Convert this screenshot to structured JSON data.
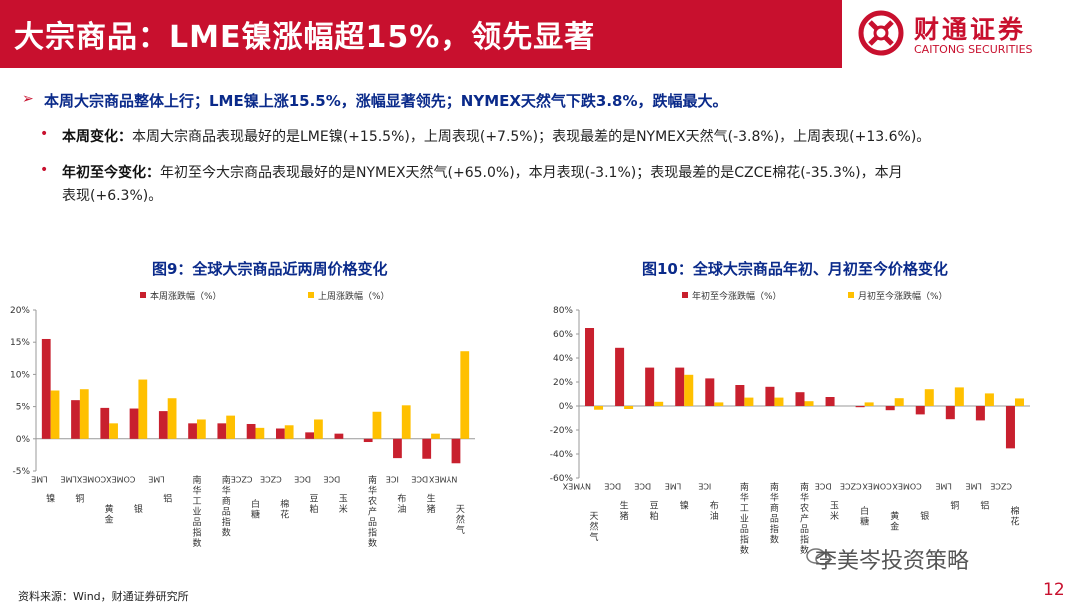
{
  "header": {
    "title": "大宗商品：LME镍涨幅超15%，领先显著"
  },
  "logo": {
    "cn": "财通证券",
    "en": "CAITONG SECURITIES"
  },
  "summary": {
    "arrow": "➢",
    "text": "本周大宗商品整体上行；LME镍上涨15.5%，涨幅显著领先；NYMEX天然气下跌3.8%，跌幅最大。"
  },
  "bullets": [
    {
      "dot": "•",
      "label": "本周变化：",
      "text": "本周大宗商品表现最好的是LME镍(+15.5%)，上周表现(+7.5%)；表现最差的是NYMEX天然气(-3.8%)，上周表现(+13.6%)。"
    },
    {
      "dot": "•",
      "label": "年初至今变化：",
      "text": "年初至今大宗商品表现最好的是NYMEX天然气(+65.0%)，本月表现(-3.1%)；表现最差的是CZCE棉花(-35.3%)，本月",
      "text2": "表现(+6.3%)。"
    }
  ],
  "chart_data": [
    {
      "type": "bar",
      "title": "图9：全球大宗商品近两周价格变化",
      "categories": [
        "LME镍",
        "LME铜",
        "COMEX黄金",
        "COMEX银",
        "LME铝",
        "南华工业品指数",
        "南华商品指数",
        "CZCE白糖",
        "CZCE棉花",
        "DCE豆粕",
        "DCE玉米",
        "南华农产品指数",
        "ICE布油",
        "DCE生猪",
        "NYMEX天然气"
      ],
      "series": [
        {
          "name": "本周涨跌幅（%）",
          "color": "#c8202e",
          "values": [
            15.5,
            6.0,
            4.8,
            4.7,
            4.3,
            2.4,
            2.4,
            2.3,
            1.6,
            1.0,
            0.8,
            -0.5,
            -3.0,
            -3.1,
            -3.8
          ]
        },
        {
          "name": "上周涨跌幅（%）",
          "color": "#ffc000",
          "values": [
            7.5,
            7.7,
            2.4,
            9.2,
            6.3,
            3.0,
            3.6,
            1.7,
            2.1,
            3.0,
            0.0,
            4.2,
            5.2,
            0.8,
            13.6
          ]
        }
      ],
      "ylim": [
        -5,
        20
      ],
      "yticks": [
        "-5%",
        "0%",
        "5%",
        "10%",
        "15%",
        "20%"
      ],
      "legend": "top"
    },
    {
      "type": "bar",
      "title": "图10：全球大宗商品年初、月初至今价格变化",
      "categories": [
        "NYMEX天然气",
        "DCE生猪",
        "DCE豆粕",
        "LME镍",
        "ICE布油",
        "南华工业品指数",
        "南华商品指数",
        "南华农产品指数",
        "DCE玉米",
        "CZCE白糖",
        "COMEX黄金",
        "COMEX银",
        "LME铜",
        "LME铝",
        "CZCE棉花"
      ],
      "series": [
        {
          "name": "年初至今涨跌幅（%）",
          "color": "#c8202e",
          "values": [
            65.0,
            48.5,
            32.0,
            32.0,
            23.0,
            17.5,
            16.0,
            11.5,
            7.5,
            -1.0,
            -3.5,
            -7.0,
            -11.0,
            -12.0,
            -35.3
          ]
        },
        {
          "name": "月初至今涨跌幅（%）",
          "color": "#ffc000",
          "values": [
            -3.1,
            -2.5,
            3.5,
            26.0,
            3.0,
            7.0,
            7.0,
            4.0,
            0.0,
            3.0,
            6.5,
            14.0,
            15.5,
            10.5,
            6.3
          ]
        }
      ],
      "ylim": [
        -60,
        80
      ],
      "yticks": [
        "-60%",
        "-40%",
        "-20%",
        "0%",
        "20%",
        "40%",
        "60%",
        "80%"
      ],
      "legend": "top"
    }
  ],
  "footer": {
    "source": "资料来源：Wind，财通证券研究所",
    "watermark": "李美岑投资策略",
    "page": "12"
  }
}
